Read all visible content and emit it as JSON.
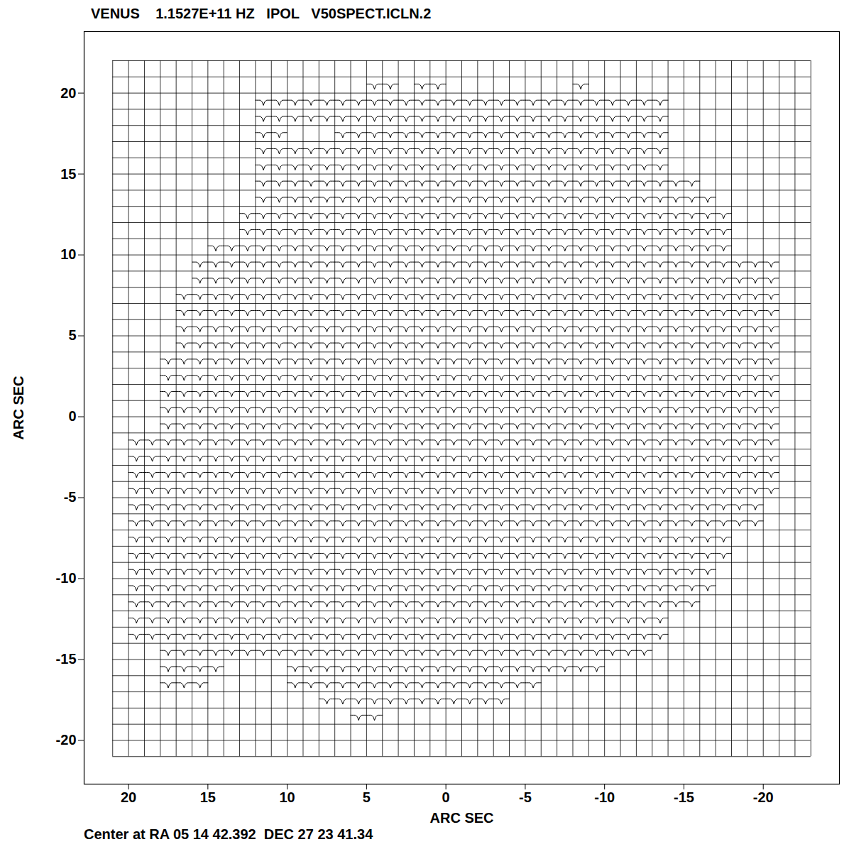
{
  "chart_data": {
    "type": "spectral_map",
    "title": "VENUS    1.1527E+11 HZ   IPOL   V50SPECT.ICLN.2",
    "caption": "Center at RA 05 14 42.392  DEC 27 23 41.34",
    "x_label": "ARC SEC",
    "y_label": "ARC SEC",
    "xlim": [
      22.8,
      -24.8
    ],
    "ylim": [
      -22.7,
      23.8
    ],
    "xticks": [
      20,
      15,
      10,
      5,
      0,
      -5,
      -10,
      -15,
      -20
    ],
    "yticks": [
      -20,
      -15,
      -10,
      -5,
      0,
      5,
      10,
      15,
      20
    ],
    "grid": true,
    "grid_cells": {
      "x": [
        21,
        -23
      ],
      "y": [
        22,
        -21
      ]
    },
    "color": "#000000",
    "spectrum_profile": [
      0,
      0,
      0,
      0,
      0,
      -0.04,
      -0.12,
      -0.32,
      -0.12,
      -0.04,
      0,
      0,
      0,
      0,
      0
    ],
    "spectra_rows": [
      {
        "y": 21,
        "cells": [
          [
            5,
            3
          ],
          [
            2,
            0
          ],
          [
            -8,
            -9
          ]
        ]
      },
      {
        "y": 20,
        "cells": [
          [
            12,
            -14
          ]
        ]
      },
      {
        "y": 19,
        "cells": [
          [
            12,
            -14
          ]
        ]
      },
      {
        "y": 18,
        "cells": [
          [
            12,
            10
          ],
          [
            7,
            -14
          ]
        ]
      },
      {
        "y": 17,
        "cells": [
          [
            12,
            -14
          ]
        ]
      },
      {
        "y": 16,
        "cells": [
          [
            12,
            -14
          ]
        ]
      },
      {
        "y": 15,
        "cells": [
          [
            12,
            -16
          ]
        ]
      },
      {
        "y": 14,
        "cells": [
          [
            12,
            -17
          ]
        ]
      },
      {
        "y": 13,
        "cells": [
          [
            13,
            -18
          ]
        ]
      },
      {
        "y": 12,
        "cells": [
          [
            13,
            -18
          ]
        ]
      },
      {
        "y": 11,
        "cells": [
          [
            15,
            -18
          ]
        ]
      },
      {
        "y": 10,
        "cells": [
          [
            16,
            -21
          ]
        ]
      },
      {
        "y": 9,
        "cells": [
          [
            16,
            -21
          ]
        ]
      },
      {
        "y": 8,
        "cells": [
          [
            17,
            -21
          ]
        ]
      },
      {
        "y": 7,
        "cells": [
          [
            17,
            -21
          ]
        ]
      },
      {
        "y": 6,
        "cells": [
          [
            17,
            -21
          ]
        ]
      },
      {
        "y": 5,
        "cells": [
          [
            17,
            -21
          ]
        ]
      },
      {
        "y": 4,
        "cells": [
          [
            18,
            -21
          ]
        ]
      },
      {
        "y": 3,
        "cells": [
          [
            18,
            -21
          ]
        ]
      },
      {
        "y": 2,
        "cells": [
          [
            18,
            -21
          ]
        ]
      },
      {
        "y": 1,
        "cells": [
          [
            18,
            -21
          ]
        ]
      },
      {
        "y": 0,
        "cells": [
          [
            18,
            -21
          ]
        ]
      },
      {
        "y": -1,
        "cells": [
          [
            20,
            -21
          ]
        ]
      },
      {
        "y": -2,
        "cells": [
          [
            20,
            -21
          ]
        ]
      },
      {
        "y": -3,
        "cells": [
          [
            20,
            -21
          ]
        ]
      },
      {
        "y": -4,
        "cells": [
          [
            20,
            -21
          ]
        ]
      },
      {
        "y": -5,
        "cells": [
          [
            20,
            -20
          ]
        ]
      },
      {
        "y": -6,
        "cells": [
          [
            20,
            -20
          ]
        ]
      },
      {
        "y": -7,
        "cells": [
          [
            20,
            -18
          ]
        ]
      },
      {
        "y": -8,
        "cells": [
          [
            20,
            -18
          ]
        ]
      },
      {
        "y": -9,
        "cells": [
          [
            20,
            -17
          ]
        ]
      },
      {
        "y": -10,
        "cells": [
          [
            20,
            -17
          ]
        ]
      },
      {
        "y": -11,
        "cells": [
          [
            20,
            -16
          ]
        ]
      },
      {
        "y": -12,
        "cells": [
          [
            20,
            -14
          ]
        ]
      },
      {
        "y": -13,
        "cells": [
          [
            20,
            -14
          ]
        ]
      },
      {
        "y": -14,
        "cells": [
          [
            18,
            -13
          ]
        ]
      },
      {
        "y": -15,
        "cells": [
          [
            18,
            14
          ],
          [
            10,
            -10
          ]
        ]
      },
      {
        "y": -16,
        "cells": [
          [
            18,
            15
          ],
          [
            10,
            -6
          ]
        ]
      },
      {
        "y": -17,
        "cells": [
          [
            8,
            -4
          ]
        ]
      },
      {
        "y": -18,
        "cells": [
          [
            6,
            4
          ]
        ]
      }
    ]
  }
}
